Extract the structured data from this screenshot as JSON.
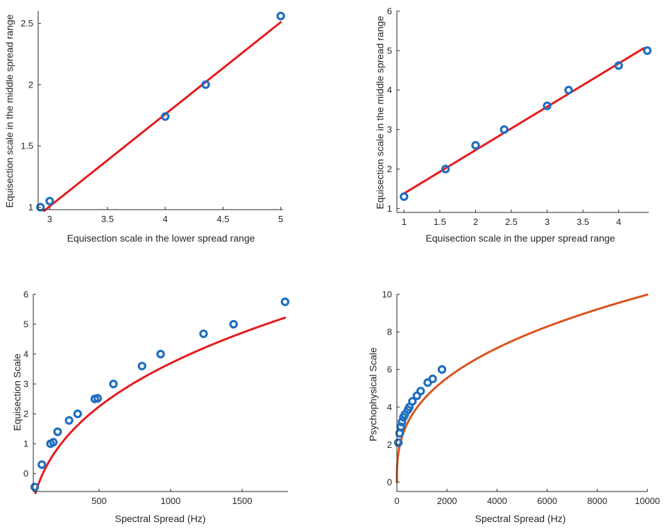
{
  "chart_data": [
    {
      "type": "scatter",
      "xlabel": "Equisection scale in the lower spread range",
      "ylabel": "Equisection scale in the middle spread range",
      "xlim": [
        2.9,
        5.02
      ],
      "ylim": [
        0.98,
        2.6
      ],
      "xticks": [
        3,
        3.5,
        4,
        4.5,
        5
      ],
      "xtick_labels": [
        "3",
        "3.5",
        "4",
        "4.5",
        "5"
      ],
      "yticks": [
        1,
        1.5,
        2,
        2.5
      ],
      "ytick_labels": [
        "1",
        "1.5",
        "2",
        "2.5"
      ],
      "points": {
        "x": [
          2.92,
          3.0,
          4.0,
          4.35,
          5.0
        ],
        "y": [
          1.0,
          1.05,
          1.74,
          2.0,
          2.56
        ]
      },
      "fit": {
        "type": "linear",
        "x": [
          2.95,
          5.0
        ],
        "y": [
          0.97,
          2.51
        ]
      },
      "point_color": "#1f6fbf",
      "fit_color": "#e8191c"
    },
    {
      "type": "scatter",
      "xlabel": "Equisection scale in the upper spread range",
      "ylabel": "Equisection scale in the middle spread range",
      "xlim": [
        0.9,
        4.42
      ],
      "ylim": [
        0.9,
        6.0
      ],
      "xticks": [
        1,
        1.5,
        2,
        2.5,
        3,
        3.5,
        4
      ],
      "xtick_labels": [
        "1",
        "1.5",
        "2",
        "2.5",
        "3",
        "3.5",
        "4"
      ],
      "yticks": [
        1,
        2,
        3,
        4,
        5,
        6
      ],
      "ytick_labels": [
        "1",
        "2",
        "3",
        "4",
        "5",
        "6"
      ],
      "points": {
        "x": [
          1.0,
          1.58,
          2.0,
          2.4,
          3.0,
          3.3,
          4.0,
          4.4
        ],
        "y": [
          1.3,
          2.0,
          2.6,
          3.0,
          3.6,
          4.0,
          4.62,
          5.0
        ]
      },
      "fit": {
        "type": "linear",
        "x": [
          1.0,
          4.35
        ],
        "y": [
          1.38,
          5.06
        ]
      },
      "point_color": "#1f6fbf",
      "fit_color": "#e8191c"
    },
    {
      "type": "scatter",
      "xlabel": "Spectral Spread (Hz)",
      "ylabel": "Equisection Scale",
      "xlim": [
        40,
        1820
      ],
      "ylim": [
        -0.6,
        6.0
      ],
      "xticks": [
        500,
        1000,
        1500
      ],
      "xtick_labels": [
        "500",
        "1000",
        "1500"
      ],
      "yticks": [
        0,
        1,
        2,
        3,
        4,
        5,
        6
      ],
      "ytick_labels": [
        "0",
        "1",
        "2",
        "3",
        "4",
        "5",
        "6"
      ],
      "points": {
        "x": [
          50,
          100,
          160,
          180,
          210,
          290,
          350,
          470,
          490,
          600,
          800,
          930,
          1230,
          1440,
          1800
        ],
        "y": [
          -0.45,
          0.3,
          1.0,
          1.05,
          1.4,
          1.78,
          2.0,
          2.5,
          2.52,
          3.0,
          3.6,
          4.0,
          4.68,
          5.0,
          5.75
        ]
      },
      "fit": {
        "type": "power",
        "a": 0.6895,
        "b": 0.3354,
        "c": -3.3,
        "xrange": [
          55,
          1800
        ]
      },
      "point_color": "#1f6fbf",
      "fit_color": "#e8191c"
    },
    {
      "type": "scatter",
      "xlabel": "Spectral Spread (Hz)",
      "ylabel": "Psychophysical Scale",
      "xlim": [
        0,
        10000
      ],
      "ylim": [
        -0.5,
        10.0
      ],
      "xticks": [
        0,
        2000,
        4000,
        6000,
        8000,
        10000
      ],
      "xtick_labels": [
        "0",
        "2000",
        "4000",
        "6000",
        "8000",
        "10000"
      ],
      "yticks": [
        0,
        2,
        4,
        6,
        8,
        10
      ],
      "ytick_labels": [
        "0",
        "2",
        "4",
        "6",
        "8",
        "10"
      ],
      "points": {
        "x": [
          60,
          110,
          160,
          200,
          260,
          320,
          440,
          500,
          620,
          800,
          950,
          1230,
          1430,
          1800
        ],
        "y": [
          2.1,
          2.6,
          2.95,
          3.2,
          3.45,
          3.6,
          3.85,
          4.0,
          4.3,
          4.6,
          4.85,
          5.3,
          5.5,
          6.0
        ]
      },
      "fit": {
        "type": "power",
        "a": 0.3436,
        "b": 0.3658,
        "c": 0.0,
        "xrange": [
          0,
          10000
        ]
      },
      "point_color": "#1f6fbf",
      "fit_color": "#d95319"
    }
  ]
}
